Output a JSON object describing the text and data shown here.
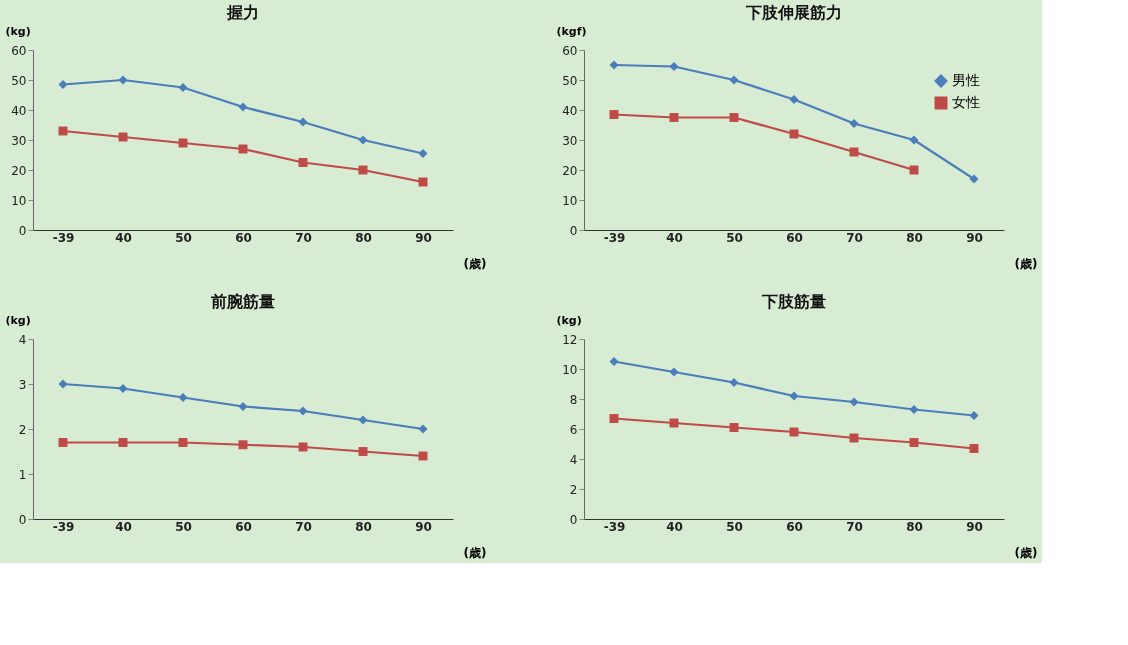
{
  "chart_data": [
    {
      "type": "line",
      "title": "握力",
      "ylabel": "(kg)",
      "xlabel": "(歳)",
      "categories": [
        "-39",
        "40",
        "50",
        "60",
        "70",
        "80",
        "90"
      ],
      "ylim": [
        0,
        60
      ],
      "yticks": [
        0,
        10,
        20,
        30,
        40,
        50,
        60
      ],
      "grid": false,
      "line_style": "solid",
      "series": [
        {
          "color": "#4a7ebb",
          "marker": "diamond",
          "values": [
            48.5,
            50,
            47.5,
            41,
            36,
            30,
            25.5
          ]
        },
        {
          "color": "#be4b48",
          "marker": "square",
          "values": [
            33,
            31,
            29,
            27,
            22.5,
            20,
            16
          ]
        }
      ]
    },
    {
      "type": "line",
      "title": "下肢伸展筋力",
      "ylabel": "(kgf)",
      "xlabel": "(歳)",
      "categories": [
        "-39",
        "40",
        "50",
        "60",
        "70",
        "80",
        "90"
      ],
      "ylim": [
        0,
        60
      ],
      "yticks": [
        0,
        10,
        20,
        30,
        40,
        50,
        60
      ],
      "grid": false,
      "legend": "top right",
      "line_style": "solid",
      "series": [
        {
          "name": "男性",
          "color": "#4a7ebb",
          "marker": "diamond",
          "values": [
            55,
            54.5,
            50,
            43.5,
            35.5,
            30,
            17
          ]
        },
        {
          "name": "女性",
          "color": "#be4b48",
          "marker": "square",
          "values": [
            38.5,
            37.5,
            37.5,
            32,
            26,
            20,
            null
          ]
        }
      ]
    },
    {
      "type": "line",
      "title": "前腕筋量",
      "ylabel": "(kg)",
      "xlabel": "(歳)",
      "categories": [
        "-39",
        "40",
        "50",
        "60",
        "70",
        "80",
        "90"
      ],
      "ylim": [
        0,
        4
      ],
      "yticks": [
        0,
        1,
        2,
        3,
        4
      ],
      "grid": false,
      "line_style": "solid",
      "series": [
        {
          "color": "#4a7ebb",
          "marker": "diamond",
          "values": [
            3.0,
            2.9,
            2.7,
            2.5,
            2.4,
            2.2,
            2.0
          ]
        },
        {
          "color": "#be4b48",
          "marker": "square",
          "values": [
            1.7,
            1.7,
            1.7,
            1.65,
            1.6,
            1.5,
            1.4
          ]
        }
      ]
    },
    {
      "type": "line",
      "title": "下肢筋量",
      "ylabel": "(kg)",
      "xlabel": "(歳)",
      "categories": [
        "-39",
        "40",
        "50",
        "60",
        "70",
        "80",
        "90"
      ],
      "ylim": [
        0,
        12
      ],
      "yticks": [
        0,
        2,
        4,
        6,
        8,
        10,
        12
      ],
      "grid": false,
      "line_style": "solid",
      "series": [
        {
          "color": "#4a7ebb",
          "marker": "diamond",
          "values": [
            10.5,
            9.8,
            9.1,
            8.2,
            7.8,
            7.3,
            6.9
          ]
        },
        {
          "color": "#be4b48",
          "marker": "square",
          "values": [
            6.7,
            6.4,
            6.1,
            5.8,
            5.4,
            5.1,
            4.7
          ]
        }
      ]
    }
  ]
}
